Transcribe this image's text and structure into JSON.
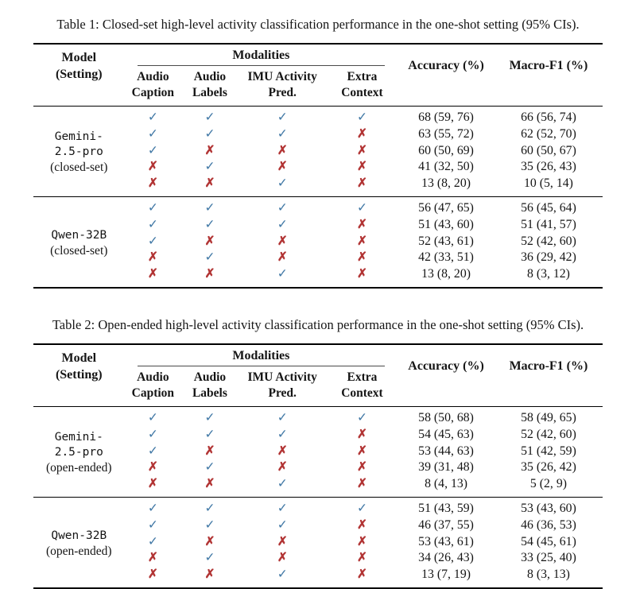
{
  "colors": {
    "check": "#4279a6",
    "cross": "#b23535",
    "rule": "#000000"
  },
  "glyphs": {
    "check": "✓",
    "cross": "✗"
  },
  "tables": [
    {
      "caption": "Table 1: Closed-set high-level activity classification performance in the one-shot setting (95% CIs).",
      "header": {
        "model_line1": "Model",
        "model_line2": "(Setting)",
        "modalities": "Modalities",
        "subcolumns": [
          [
            "Audio",
            "Caption"
          ],
          [
            "Audio",
            "Labels"
          ],
          [
            "IMU Activity",
            "Pred."
          ],
          [
            "Extra",
            "Context"
          ]
        ],
        "accuracy": "Accuracy (%)",
        "macro_f1": "Macro-F1 (%)"
      },
      "groups": [
        {
          "model_lines": [
            "Gemini-",
            "2.5-pro"
          ],
          "setting": "(closed-set)",
          "rows": [
            {
              "marks": [
                "✓",
                "✓",
                "✓",
                "✓"
              ],
              "accuracy": "68 (59, 76)",
              "macro_f1": "66 (56, 74)"
            },
            {
              "marks": [
                "✓",
                "✓",
                "✓",
                "✗"
              ],
              "accuracy": "63 (55, 72)",
              "macro_f1": "62 (52, 70)"
            },
            {
              "marks": [
                "✓",
                "✗",
                "✗",
                "✗"
              ],
              "accuracy": "60 (50, 69)",
              "macro_f1": "60 (50, 67)"
            },
            {
              "marks": [
                "✗",
                "✓",
                "✗",
                "✗"
              ],
              "accuracy": "41 (32, 50)",
              "macro_f1": "35 (26, 43)"
            },
            {
              "marks": [
                "✗",
                "✗",
                "✓",
                "✗"
              ],
              "accuracy": "13 (8, 20)",
              "macro_f1": "10 (5, 14)"
            }
          ]
        },
        {
          "model_lines": [
            "Qwen-32B"
          ],
          "setting": "(closed-set)",
          "rows": [
            {
              "marks": [
                "✓",
                "✓",
                "✓",
                "✓"
              ],
              "accuracy": "56 (47, 65)",
              "macro_f1": "56 (45, 64)"
            },
            {
              "marks": [
                "✓",
                "✓",
                "✓",
                "✗"
              ],
              "accuracy": "51 (43, 60)",
              "macro_f1": "51 (41, 57)"
            },
            {
              "marks": [
                "✓",
                "✗",
                "✗",
                "✗"
              ],
              "accuracy": "52 (43, 61)",
              "macro_f1": "52 (42, 60)"
            },
            {
              "marks": [
                "✗",
                "✓",
                "✗",
                "✗"
              ],
              "accuracy": "42 (33, 51)",
              "macro_f1": "36 (29, 42)"
            },
            {
              "marks": [
                "✗",
                "✗",
                "✓",
                "✗"
              ],
              "accuracy": "13 (8, 20)",
              "macro_f1": "8 (3, 12)"
            }
          ]
        }
      ]
    },
    {
      "caption": "Table 2: Open-ended high-level activity classification performance in the one-shot setting (95% CIs).",
      "header": {
        "model_line1": "Model",
        "model_line2": "(Setting)",
        "modalities": "Modalities",
        "subcolumns": [
          [
            "Audio",
            "Caption"
          ],
          [
            "Audio",
            "Labels"
          ],
          [
            "IMU Activity",
            "Pred."
          ],
          [
            "Extra",
            "Context"
          ]
        ],
        "accuracy": "Accuracy (%)",
        "macro_f1": "Macro-F1 (%)"
      },
      "groups": [
        {
          "model_lines": [
            "Gemini-",
            "2.5-pro"
          ],
          "setting": "(open-ended)",
          "rows": [
            {
              "marks": [
                "✓",
                "✓",
                "✓",
                "✓"
              ],
              "accuracy": "58 (50, 68)",
              "macro_f1": "58 (49, 65)"
            },
            {
              "marks": [
                "✓",
                "✓",
                "✓",
                "✗"
              ],
              "accuracy": "54 (45, 63)",
              "macro_f1": "52 (42, 60)"
            },
            {
              "marks": [
                "✓",
                "✗",
                "✗",
                "✗"
              ],
              "accuracy": "53 (44, 63)",
              "macro_f1": "51 (42, 59)"
            },
            {
              "marks": [
                "✗",
                "✓",
                "✗",
                "✗"
              ],
              "accuracy": "39 (31, 48)",
              "macro_f1": "35 (26, 42)"
            },
            {
              "marks": [
                "✗",
                "✗",
                "✓",
                "✗"
              ],
              "accuracy": "8 (4, 13)",
              "macro_f1": "5 (2, 9)"
            }
          ]
        },
        {
          "model_lines": [
            "Qwen-32B"
          ],
          "setting": "(open-ended)",
          "rows": [
            {
              "marks": [
                "✓",
                "✓",
                "✓",
                "✓"
              ],
              "accuracy": "51 (43, 59)",
              "macro_f1": "53 (43, 60)"
            },
            {
              "marks": [
                "✓",
                "✓",
                "✓",
                "✗"
              ],
              "accuracy": "46 (37, 55)",
              "macro_f1": "46 (36, 53)"
            },
            {
              "marks": [
                "✓",
                "✗",
                "✗",
                "✗"
              ],
              "accuracy": "53 (43, 61)",
              "macro_f1": "54 (45, 61)"
            },
            {
              "marks": [
                "✗",
                "✓",
                "✗",
                "✗"
              ],
              "accuracy": "34 (26, 43)",
              "macro_f1": "33 (25, 40)"
            },
            {
              "marks": [
                "✗",
                "✗",
                "✓",
                "✗"
              ],
              "accuracy": "13 (7, 19)",
              "macro_f1": "8 (3, 13)"
            }
          ]
        }
      ]
    }
  ]
}
